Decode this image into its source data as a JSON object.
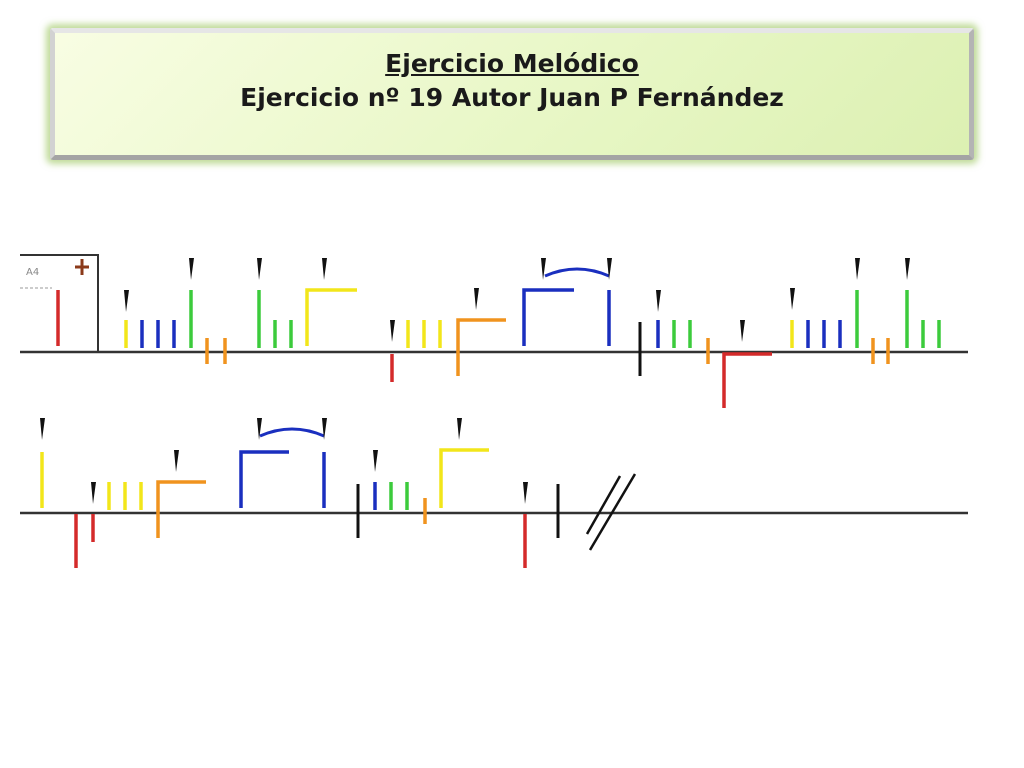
{
  "header": {
    "title": "Ejercicio Melódico",
    "subtitle": "Ejercicio nº 19  Autor Juan P Fernández"
  },
  "clef_box": {
    "label": "A4"
  },
  "colors": {
    "red": "#d42a2a",
    "yellow": "#f2e61a",
    "blue": "#1a2fbf",
    "green": "#3ccb3c",
    "orange": "#f0931e",
    "black": "#111111",
    "accent_plus": "#8b3a1a",
    "frame_green": "#8cbe46"
  },
  "notation": {
    "staff_count": 2,
    "elements": [
      "clef-box",
      "red-stem",
      "accent",
      "yellow-stem",
      "blue-stem",
      "blue-stem",
      "blue-stem",
      "accent",
      "green-stem",
      "orange-tick",
      "orange-tick",
      "accent",
      "green-stem",
      "green-stem",
      "green-stem",
      "accent",
      "yellow-angle",
      "accent",
      "red-stem-down",
      "yellow-stem",
      "yellow-stem",
      "yellow-stem",
      "accent",
      "orange-angle",
      "blue-angle",
      "slur",
      "accent",
      "blue-stem",
      "barline",
      "accent",
      "blue-stem",
      "green-stem",
      "green-stem",
      "orange-tick",
      "accent",
      "red-angle-down",
      "accent",
      "yellow-stem",
      "blue-stem",
      "blue-stem",
      "blue-stem",
      "accent",
      "green-stem",
      "orange-tick",
      "orange-tick",
      "accent",
      "green-stem",
      "green-stem",
      "green-stem",
      "accent",
      "yellow-stem",
      "red-stem-down",
      "accent",
      "red-stem-down",
      "yellow-stem",
      "yellow-stem",
      "yellow-stem",
      "accent",
      "orange-angle",
      "blue-angle",
      "slur",
      "accent",
      "blue-stem",
      "barline",
      "accent",
      "blue-stem",
      "green-stem",
      "green-stem",
      "accent",
      "orange-tick",
      "yellow-angle",
      "accent",
      "red-stem-down",
      "barline",
      "end-mark"
    ]
  }
}
